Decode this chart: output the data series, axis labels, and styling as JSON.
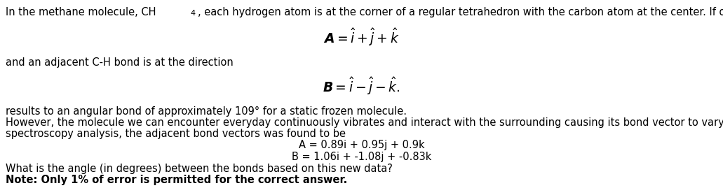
{
  "figsize": [
    10.31,
    2.79
  ],
  "dpi": 100,
  "bg_color": "#ffffff",
  "eq1": "$\\boldsymbol{A} = \\hat{i} + \\hat{j} + \\hat{k}$",
  "eq2": "$\\boldsymbol{B} = \\hat{i} - \\hat{j} - \\hat{k}.$",
  "line2": "and an adjacent C-H bond is at the direction",
  "line3": "results to an angular bond of approximately 109° for a static frozen molecule.",
  "line4a": "However, the molecule we can encounter everyday continuously vibrates and interact with the surrounding causing its bond vector to vary slightly. According to a new",
  "line4b": "spectroscopy analysis, the adjacent bond vectors was found to be",
  "eq3": "A = 0.89i + 0.95j + 0.9k",
  "eq4": "B = 1.06i + -1.08j + -0.83k",
  "line5": "What is the angle (in degrees) between the bonds based on this new data?",
  "line6": "Note: Only 1% of error is permitted for the correct answer.",
  "fs": 10.5,
  "fs_eq": 13.5,
  "fs_eq_sm": 10.5,
  "text_color": "#000000"
}
